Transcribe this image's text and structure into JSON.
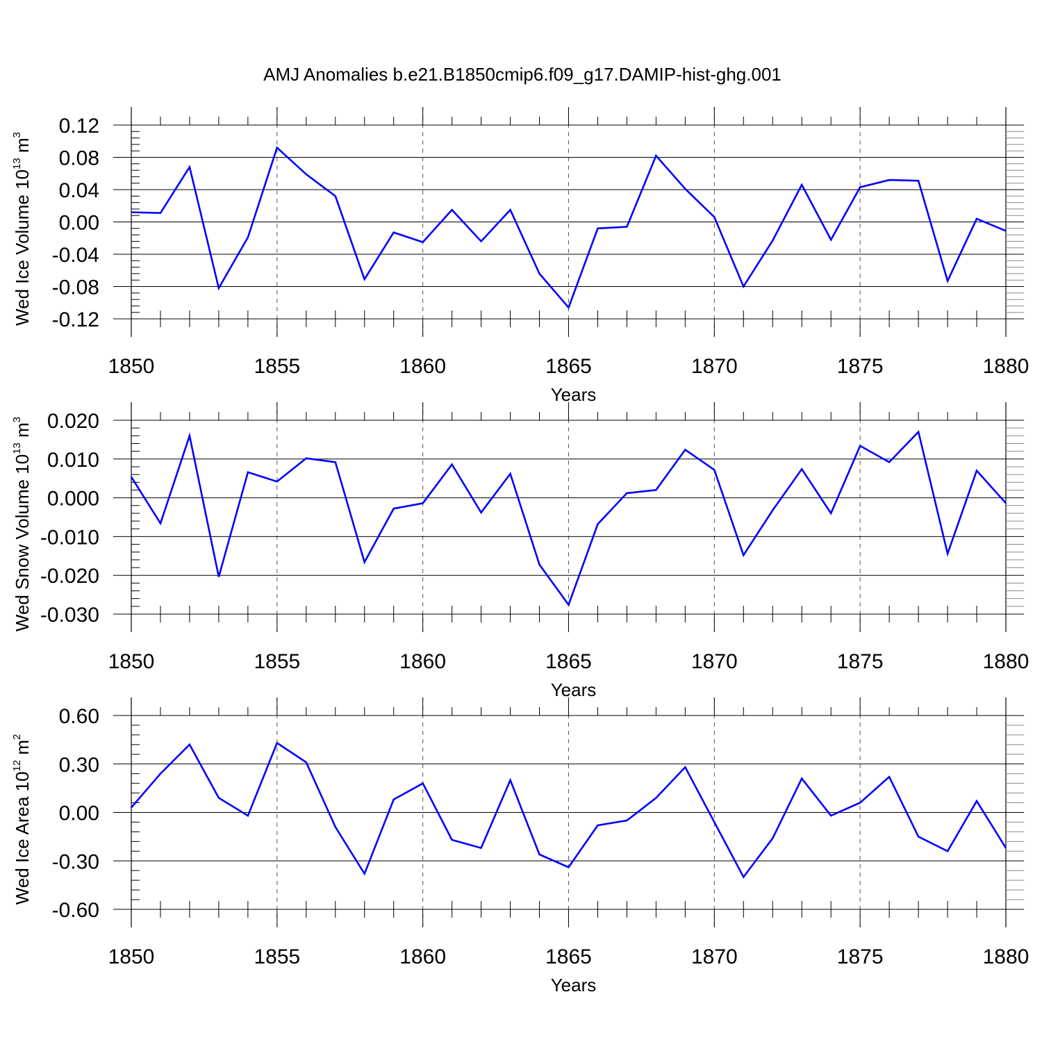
{
  "figure_title": "AMJ Anomalies b.e21.B1850cmip6.f09_g17.DAMIP-hist-ghg.001",
  "colors": {
    "line": "#0000ff",
    "axis": "#000000",
    "grid": "#555555"
  },
  "chart_data": [
    {
      "type": "line",
      "ylabel_text": "Wed Ice Volume 10",
      "ylabel_exp": "13",
      "ylabel_unit": " m",
      "ylabel_unit_exp": "3",
      "xlabel": "Years",
      "xlim": [
        1850,
        1880
      ],
      "ylim": [
        -0.12,
        0.12
      ],
      "x_ticks": [
        1850,
        1855,
        1860,
        1865,
        1870,
        1875,
        1880
      ],
      "y_ticks": [
        -0.12,
        -0.08,
        -0.04,
        0.0,
        0.04,
        0.08,
        0.12
      ],
      "y_tick_labels": [
        "-0.12",
        "-0.08",
        "-0.04",
        "0.00",
        "0.04",
        "0.08",
        "0.12"
      ],
      "x_tick_labels": [
        "1850",
        "1855",
        "1860",
        "1865",
        "1870",
        "1875",
        "1880"
      ],
      "series": [
        {
          "name": "Wed Ice Volume",
          "x": [
            1850,
            1851,
            1852,
            1853,
            1854,
            1855,
            1856,
            1857,
            1858,
            1859,
            1860,
            1861,
            1862,
            1863,
            1864,
            1865,
            1866,
            1867,
            1868,
            1869,
            1870,
            1871,
            1872,
            1873,
            1874,
            1875,
            1876,
            1877,
            1878,
            1879,
            1880
          ],
          "values": [
            0.012,
            0.011,
            0.068,
            -0.082,
            -0.019,
            0.092,
            0.059,
            0.032,
            -0.071,
            -0.013,
            -0.025,
            0.015,
            -0.024,
            0.015,
            -0.064,
            -0.106,
            -0.008,
            -0.006,
            0.082,
            0.041,
            0.006,
            -0.08,
            -0.023,
            0.046,
            -0.022,
            0.043,
            0.052,
            0.051,
            -0.073,
            0.004,
            -0.011
          ]
        }
      ]
    },
    {
      "type": "line",
      "ylabel_text": "Wed Snow Volume 10",
      "ylabel_exp": "13",
      "ylabel_unit": " m",
      "ylabel_unit_exp": "3",
      "xlabel": "Years",
      "xlim": [
        1850,
        1880
      ],
      "ylim": [
        -0.03,
        0.02
      ],
      "x_ticks": [
        1850,
        1855,
        1860,
        1865,
        1870,
        1875,
        1880
      ],
      "y_ticks": [
        -0.03,
        -0.02,
        -0.01,
        0.0,
        0.01,
        0.02
      ],
      "y_tick_labels": [
        "-0.030",
        "-0.020",
        "-0.010",
        "0.000",
        "0.010",
        "0.020"
      ],
      "x_tick_labels": [
        "1850",
        "1855",
        "1860",
        "1865",
        "1870",
        "1875",
        "1880"
      ],
      "series": [
        {
          "name": "Wed Snow Volume",
          "x": [
            1850,
            1851,
            1852,
            1853,
            1854,
            1855,
            1856,
            1857,
            1858,
            1859,
            1860,
            1861,
            1862,
            1863,
            1864,
            1865,
            1866,
            1867,
            1868,
            1869,
            1870,
            1871,
            1872,
            1873,
            1874,
            1875,
            1876,
            1877,
            1878,
            1879,
            1880
          ],
          "values": [
            0.0054,
            -0.0066,
            0.016,
            -0.0204,
            0.0066,
            0.0042,
            0.0102,
            0.0092,
            -0.0166,
            -0.0028,
            -0.0014,
            0.0086,
            -0.0038,
            0.0062,
            -0.0172,
            -0.0276,
            -0.0068,
            0.0012,
            0.002,
            0.0124,
            0.0072,
            -0.0148,
            -0.0032,
            0.0074,
            -0.004,
            0.0134,
            0.0092,
            0.017,
            -0.0144,
            0.007,
            -0.0014
          ]
        }
      ]
    },
    {
      "type": "line",
      "ylabel_text": "Wed Ice Area 10",
      "ylabel_exp": "12",
      "ylabel_unit": " m",
      "ylabel_unit_exp": "2",
      "xlabel": "Years",
      "xlim": [
        1850,
        1880
      ],
      "ylim": [
        -0.6,
        0.6
      ],
      "x_ticks": [
        1850,
        1855,
        1860,
        1865,
        1870,
        1875,
        1880
      ],
      "y_ticks": [
        -0.6,
        -0.3,
        0.0,
        0.3,
        0.6
      ],
      "y_tick_labels": [
        "-0.60",
        "-0.30",
        "0.00",
        "0.30",
        "0.60"
      ],
      "x_tick_labels": [
        "1850",
        "1855",
        "1860",
        "1865",
        "1870",
        "1875",
        "1880"
      ],
      "series": [
        {
          "name": "Wed Ice Area",
          "x": [
            1850,
            1851,
            1852,
            1853,
            1854,
            1855,
            1856,
            1857,
            1858,
            1859,
            1860,
            1861,
            1862,
            1863,
            1864,
            1865,
            1866,
            1867,
            1868,
            1869,
            1870,
            1871,
            1872,
            1873,
            1874,
            1875,
            1876,
            1877,
            1878,
            1879,
            1880
          ],
          "values": [
            0.03,
            0.24,
            0.42,
            0.09,
            -0.02,
            0.43,
            0.31,
            -0.09,
            -0.38,
            0.08,
            0.18,
            -0.17,
            -0.22,
            0.2,
            -0.26,
            -0.34,
            -0.08,
            -0.05,
            0.09,
            0.28,
            -0.06,
            -0.4,
            -0.16,
            0.21,
            -0.02,
            0.06,
            0.22,
            -0.15,
            -0.24,
            0.07,
            -0.22
          ]
        }
      ]
    }
  ]
}
